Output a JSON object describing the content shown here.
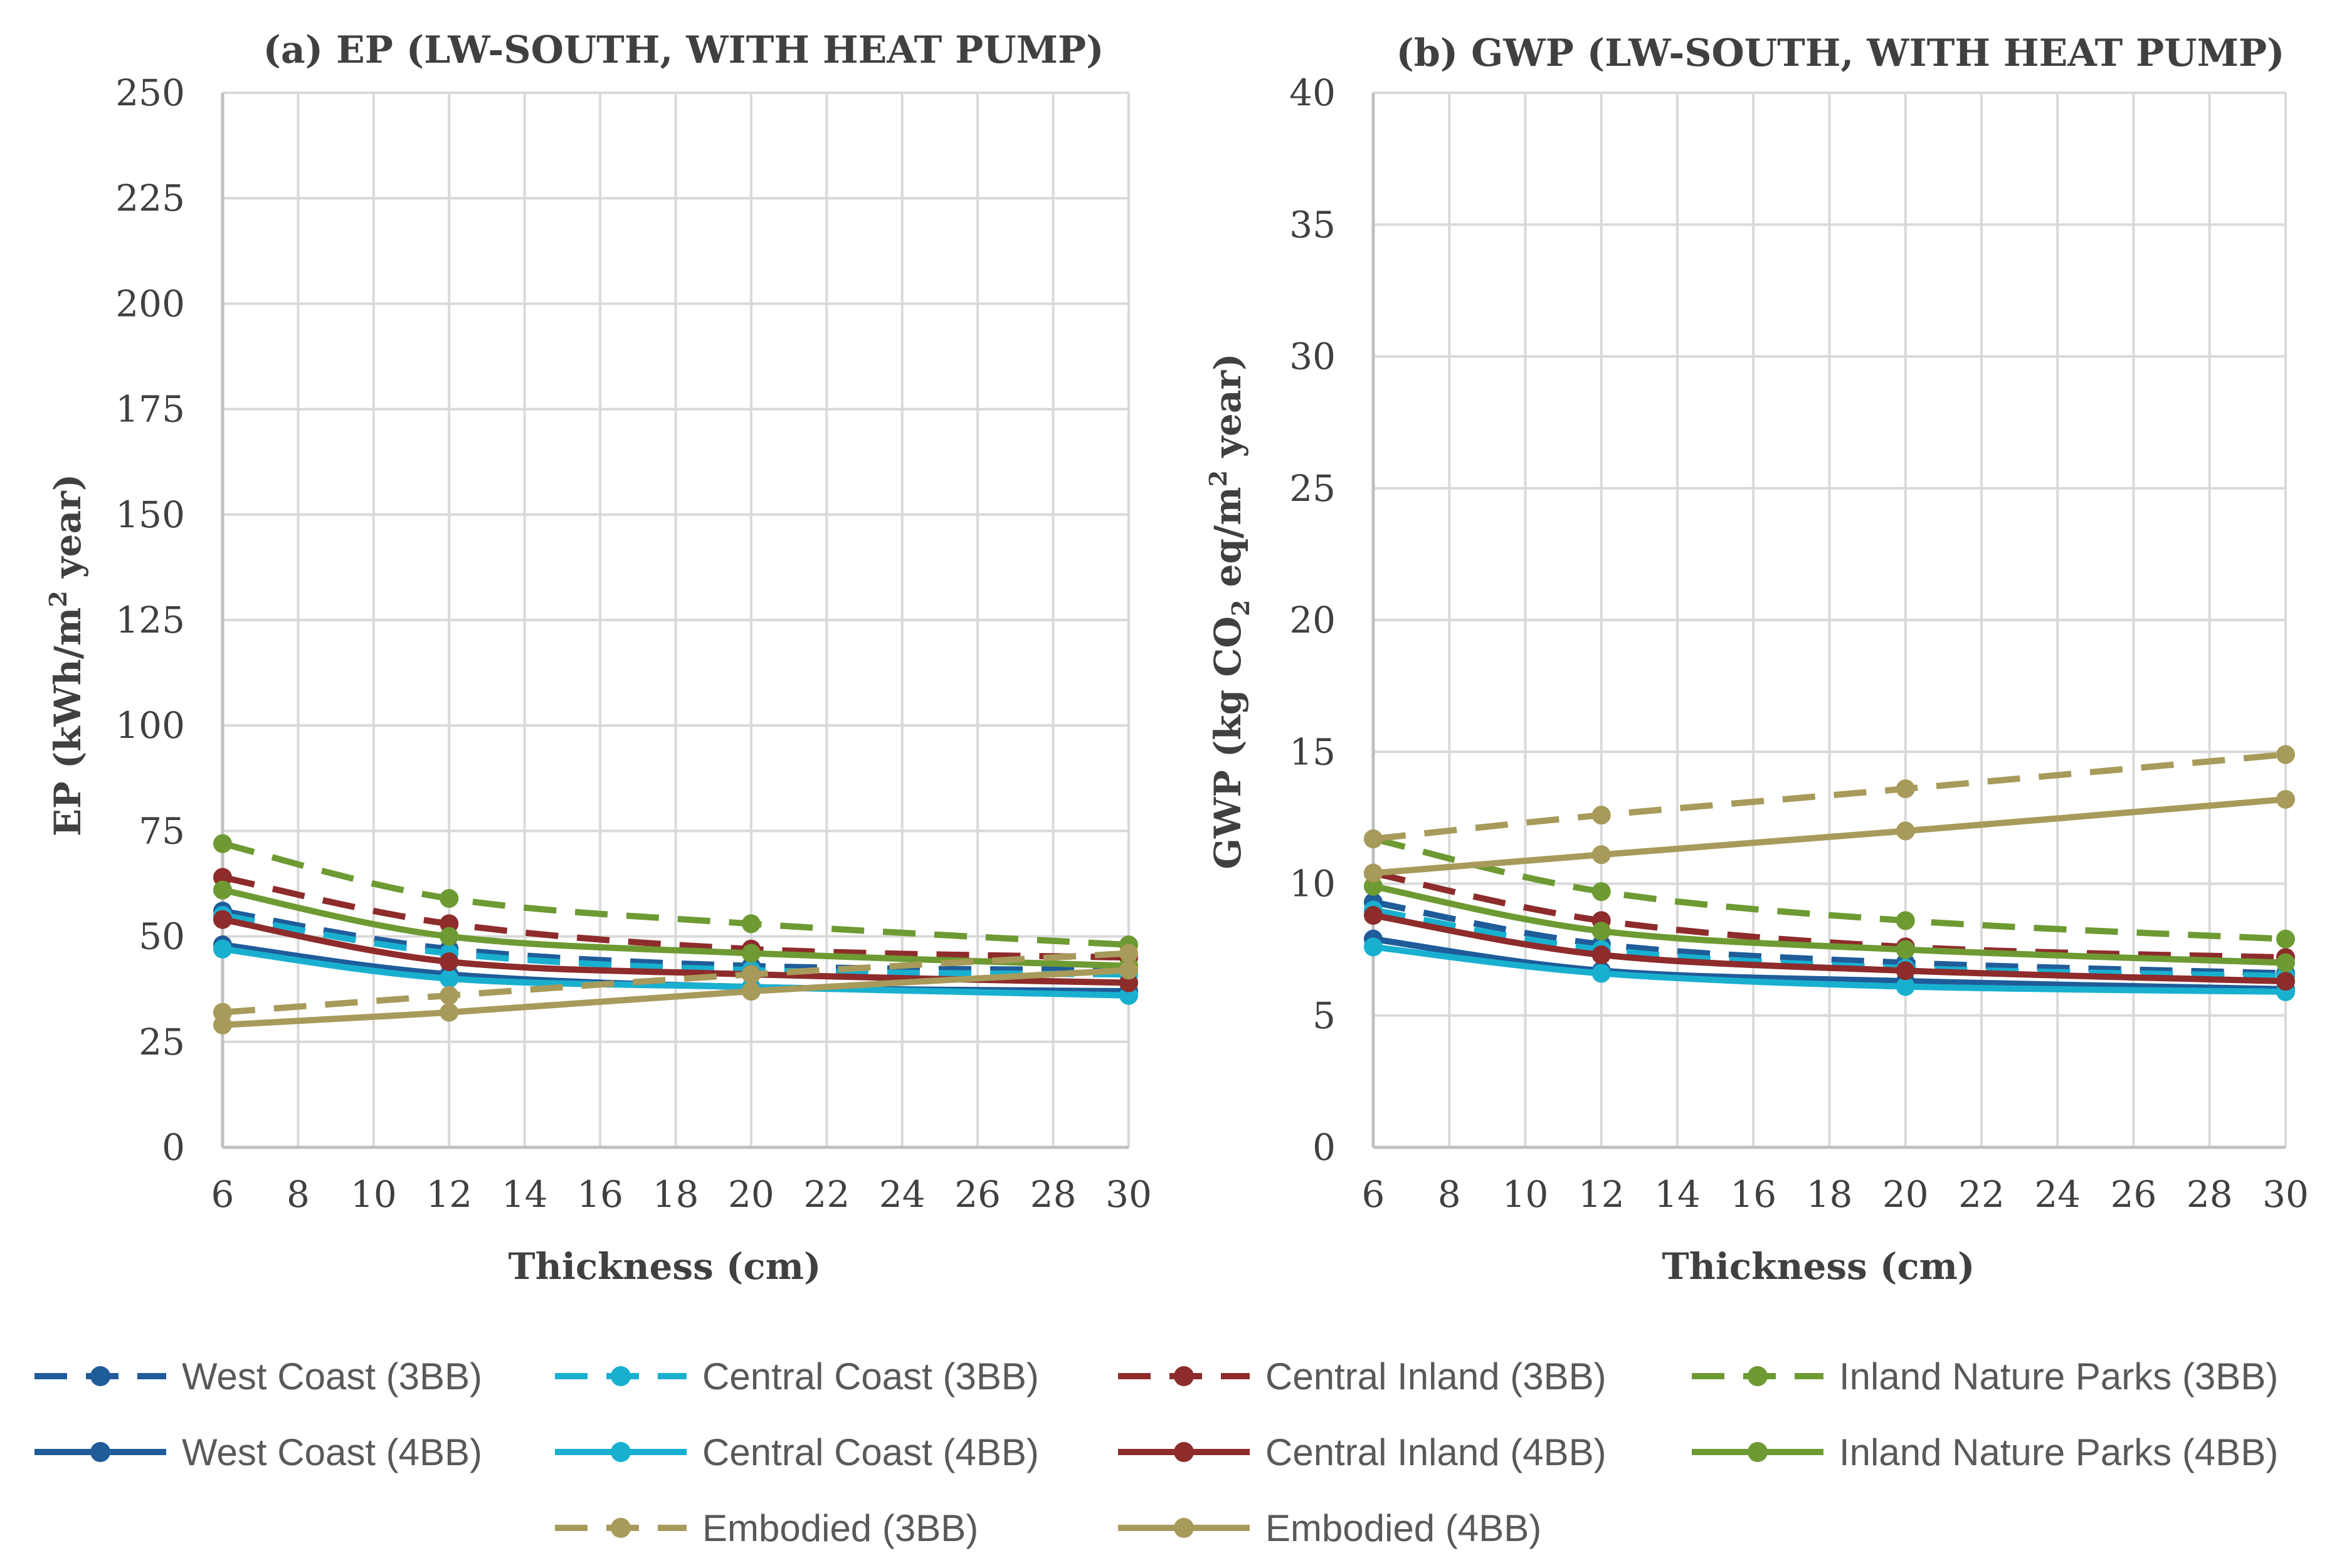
{
  "colors": {
    "west_coast": "#1F5C99",
    "central_coast": "#19B0D0",
    "central_inland": "#8E2B2B",
    "inland_nature_parks": "#6D9A32",
    "embodied": "#A89A5A",
    "grid": "#D9D9D9",
    "axis": "#BFBFBF",
    "text": "#404040"
  },
  "legend": {
    "items": [
      {
        "label": "West Coast (3BB)",
        "series": "west_coast",
        "style": "dashed"
      },
      {
        "label": "Central Coast (3BB)",
        "series": "central_coast",
        "style": "dashed"
      },
      {
        "label": "Central Inland (3BB)",
        "series": "central_inland",
        "style": "dashed"
      },
      {
        "label": "Inland Nature Parks (3BB)",
        "series": "inland_nature_parks",
        "style": "dashed"
      },
      {
        "label": "West Coast (4BB)",
        "series": "west_coast",
        "style": "solid"
      },
      {
        "label": "Central Coast (4BB)",
        "series": "central_coast",
        "style": "solid"
      },
      {
        "label": "Central Inland (4BB)",
        "series": "central_inland",
        "style": "solid"
      },
      {
        "label": "Inland Nature Parks (4BB)",
        "series": "inland_nature_parks",
        "style": "solid"
      },
      {
        "label": "Embodied (3BB)",
        "series": "embodied",
        "style": "dashed"
      },
      {
        "label": "Embodied (4BB)",
        "series": "embodied",
        "style": "solid"
      }
    ]
  },
  "chart_data": [
    {
      "type": "line",
      "title": "(a) EP (LW-SOUTH, WITH HEAT PUMP)",
      "xlabel": "Thickness  (cm)",
      "ylabel_main": "EP (kWh/m",
      "ylabel_sup": "2",
      "ylabel_tail": " year)",
      "xlim": [
        6,
        30
      ],
      "ylim": [
        0,
        250
      ],
      "xticks": [
        6,
        8,
        10,
        12,
        14,
        16,
        18,
        20,
        22,
        24,
        26,
        28,
        30
      ],
      "yticks": [
        0,
        25,
        50,
        75,
        100,
        125,
        150,
        175,
        200,
        225,
        250
      ],
      "grid": true,
      "x": [
        6,
        12,
        20,
        30
      ],
      "series": [
        {
          "name": "West Coast (3BB)",
          "color_key": "west_coast",
          "style": "dashed",
          "values": [
            56,
            47,
            43,
            42
          ]
        },
        {
          "name": "Central Coast (3BB)",
          "color_key": "central_coast",
          "style": "dashed",
          "values": [
            55,
            46,
            42,
            41
          ]
        },
        {
          "name": "Central Inland (3BB)",
          "color_key": "central_inland",
          "style": "dashed",
          "values": [
            64,
            53,
            47,
            45
          ]
        },
        {
          "name": "Inland Nature Parks (3BB)",
          "color_key": "inland_nature_parks",
          "style": "dashed",
          "values": [
            72,
            59,
            53,
            48
          ]
        },
        {
          "name": "West Coast (4BB)",
          "color_key": "west_coast",
          "style": "solid",
          "values": [
            48,
            41,
            38,
            37
          ]
        },
        {
          "name": "Central Coast (4BB)",
          "color_key": "central_coast",
          "style": "solid",
          "values": [
            47,
            40,
            38,
            36
          ]
        },
        {
          "name": "Central Inland (4BB)",
          "color_key": "central_inland",
          "style": "solid",
          "values": [
            54,
            44,
            41,
            39
          ]
        },
        {
          "name": "Inland Nature Parks (4BB)",
          "color_key": "inland_nature_parks",
          "style": "solid",
          "values": [
            61,
            50,
            46,
            43
          ]
        },
        {
          "name": "Embodied (3BB)",
          "color_key": "embodied",
          "style": "dashed",
          "values": [
            32,
            36,
            41,
            46
          ]
        },
        {
          "name": "Embodied (4BB)",
          "color_key": "embodied",
          "style": "solid",
          "values": [
            29,
            32,
            37,
            42
          ]
        }
      ]
    },
    {
      "type": "line",
      "title": "(b) GWP  (LW-SOUTH, WITH HEAT PUMP)",
      "xlabel": "Thickness  (cm)",
      "ylabel_main": "GWP  (kg CO",
      "ylabel_sub": "2",
      "ylabel_mid": " eq/m",
      "ylabel_sup": "2",
      "ylabel_tail": " year)",
      "xlim": [
        6,
        30
      ],
      "ylim": [
        0,
        40
      ],
      "xticks": [
        6,
        8,
        10,
        12,
        14,
        16,
        18,
        20,
        22,
        24,
        26,
        28,
        30
      ],
      "yticks": [
        0,
        5,
        10,
        15,
        20,
        25,
        30,
        35,
        40
      ],
      "grid": true,
      "x": [
        6,
        12,
        20,
        30
      ],
      "series": [
        {
          "name": "West Coast (3BB)",
          "color_key": "west_coast",
          "style": "dashed",
          "values": [
            9.3,
            7.7,
            7.0,
            6.6
          ]
        },
        {
          "name": "Central Coast (3BB)",
          "color_key": "central_coast",
          "style": "dashed",
          "values": [
            9.0,
            7.5,
            6.8,
            6.5
          ]
        },
        {
          "name": "Central Inland (3BB)",
          "color_key": "central_inland",
          "style": "dashed",
          "values": [
            10.4,
            8.6,
            7.6,
            7.2
          ]
        },
        {
          "name": "Inland Nature Parks (3BB)",
          "color_key": "inland_nature_parks",
          "style": "dashed",
          "values": [
            11.7,
            9.7,
            8.6,
            7.9
          ]
        },
        {
          "name": "West Coast (4BB)",
          "color_key": "west_coast",
          "style": "solid",
          "values": [
            7.9,
            6.7,
            6.3,
            6.0
          ]
        },
        {
          "name": "Central Coast (4BB)",
          "color_key": "central_coast",
          "style": "solid",
          "values": [
            7.6,
            6.6,
            6.1,
            5.9
          ]
        },
        {
          "name": "Central Inland (4BB)",
          "color_key": "central_inland",
          "style": "solid",
          "values": [
            8.8,
            7.3,
            6.7,
            6.3
          ]
        },
        {
          "name": "Inland Nature Parks (4BB)",
          "color_key": "inland_nature_parks",
          "style": "solid",
          "values": [
            9.9,
            8.2,
            7.5,
            7.0
          ]
        },
        {
          "name": "Embodied (3BB)",
          "color_key": "embodied",
          "style": "dashed",
          "values": [
            11.7,
            12.6,
            13.6,
            14.9
          ]
        },
        {
          "name": "Embodied (4BB)",
          "color_key": "embodied",
          "style": "solid",
          "values": [
            10.4,
            11.1,
            12.0,
            13.2
          ]
        }
      ]
    }
  ]
}
